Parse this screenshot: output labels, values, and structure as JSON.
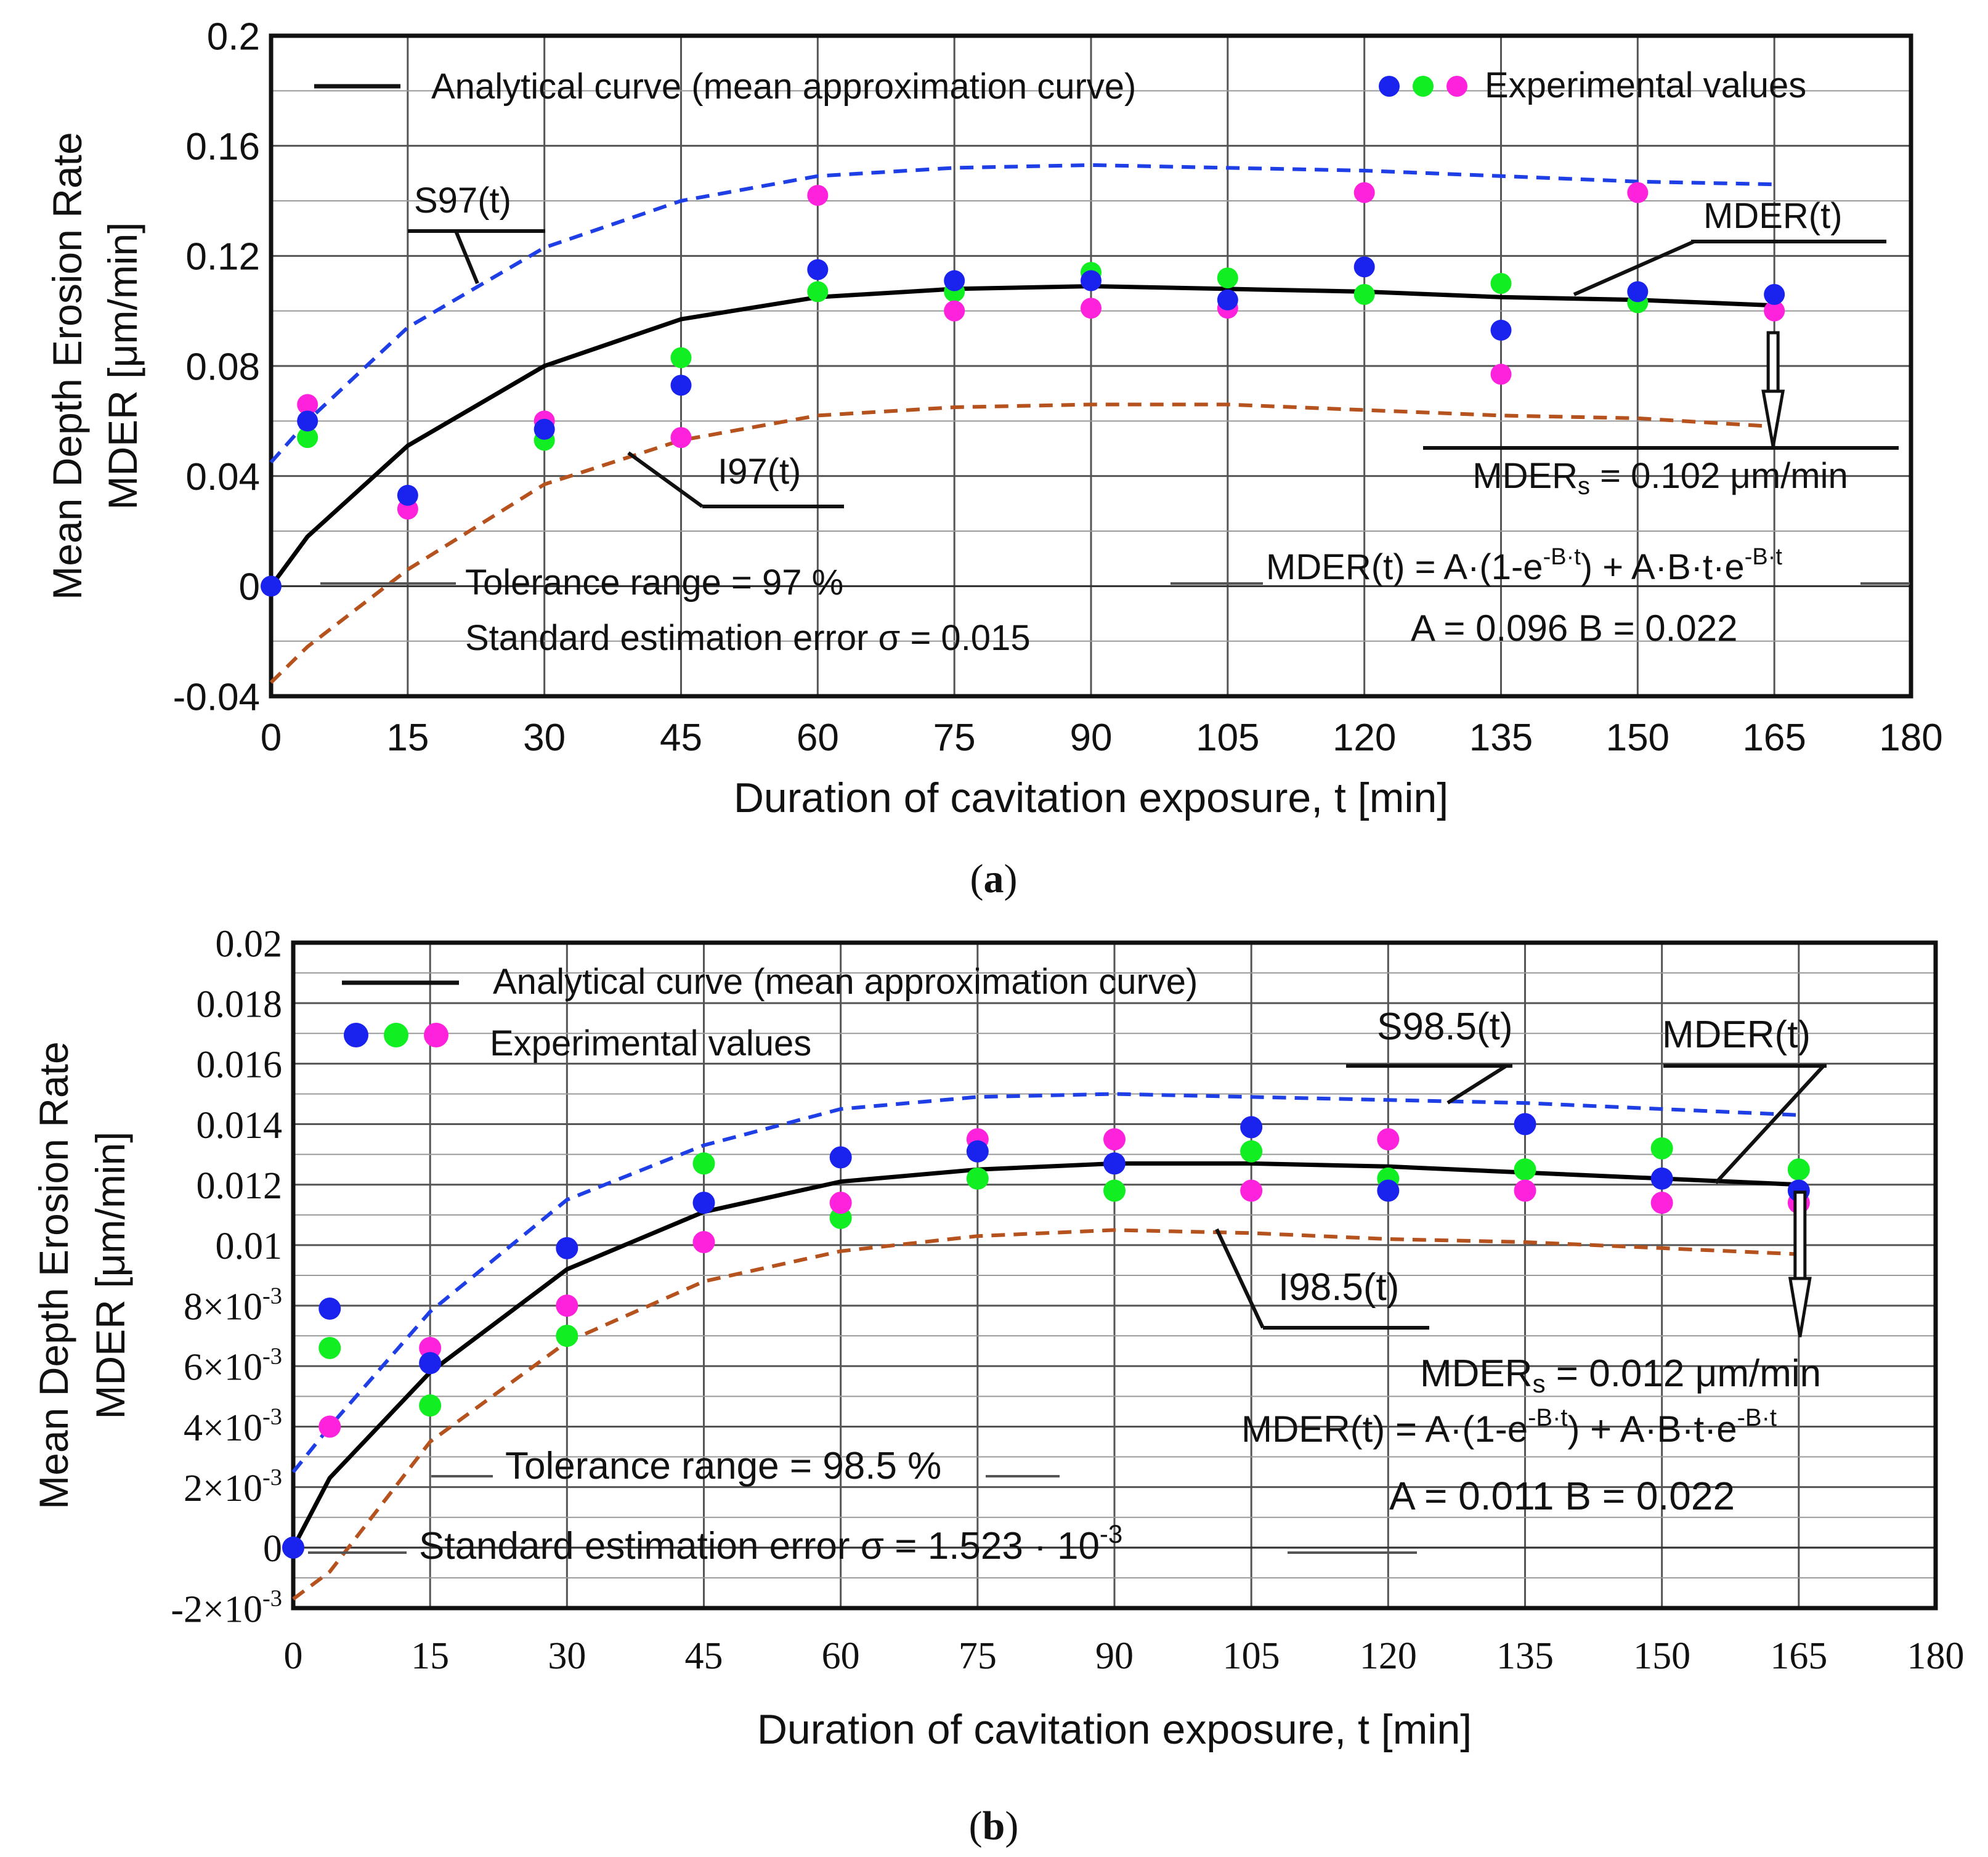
{
  "colors": {
    "upper": "#1f3fe6",
    "lower": "#b5521e",
    "mean": "#000000",
    "exp_blue": "#1a22ee",
    "exp_green": "#11ee22",
    "exp_magenta": "#ff22dd",
    "grid": "#555555"
  },
  "chart_data": [
    {
      "type": "scatter",
      "panel_label": "(a)",
      "panel_letter": "a",
      "ylabel_line1": "Mean Depth Erosion Rate",
      "ylabel_line2": "MDER [μm/min]",
      "xlabel": "Duration of cavitation exposure, t [min]",
      "xlim": [
        0,
        180
      ],
      "ylim": [
        -0.04,
        0.2
      ],
      "xticks": [
        0,
        15,
        30,
        45,
        60,
        75,
        90,
        105,
        120,
        135,
        150,
        165,
        180
      ],
      "yticks": [
        -0.04,
        0,
        0.04,
        0.08,
        0.12,
        0.16,
        0.2
      ],
      "ytick_labels": [
        "-0.04",
        "0",
        "0.04",
        "0.08",
        "0.12",
        "0.16",
        "0.2"
      ],
      "grid": true,
      "legend": {
        "analytical": "Analytical curve (mean approximation curve)",
        "experimental": "Experimental values",
        "placement": "top"
      },
      "curves": {
        "mean": {
          "name": "MDER(t)",
          "x": [
            0,
            4,
            15,
            30,
            45,
            60,
            75,
            90,
            105,
            120,
            135,
            150,
            165
          ],
          "y": [
            0,
            0.018,
            0.051,
            0.08,
            0.097,
            0.105,
            0.108,
            0.109,
            0.108,
            0.107,
            0.105,
            0.104,
            0.102
          ]
        },
        "upper": {
          "name": "S97(t)",
          "x": [
            0,
            4,
            15,
            30,
            45,
            60,
            75,
            90,
            105,
            120,
            135,
            150,
            165
          ],
          "y": [
            0.045,
            0.06,
            0.094,
            0.123,
            0.14,
            0.149,
            0.152,
            0.153,
            0.152,
            0.151,
            0.149,
            0.147,
            0.146
          ]
        },
        "lower": {
          "name": "I97(t)",
          "x": [
            0,
            4,
            15,
            30,
            45,
            60,
            75,
            90,
            105,
            120,
            135,
            150,
            165
          ],
          "y": [
            -0.035,
            -0.022,
            0.006,
            0.037,
            0.053,
            0.062,
            0.065,
            0.066,
            0.066,
            0.064,
            0.062,
            0.061,
            0.058
          ]
        }
      },
      "series": [
        {
          "name": "blue",
          "x": [
            0,
            4,
            15,
            30,
            45,
            60,
            75,
            90,
            105,
            120,
            135,
            150,
            165
          ],
          "values": [
            0,
            0.06,
            0.033,
            0.057,
            0.073,
            0.115,
            0.111,
            0.111,
            0.104,
            0.116,
            0.093,
            0.107,
            0.106
          ]
        },
        {
          "name": "green",
          "x": [
            4,
            30,
            45,
            60,
            75,
            90,
            105,
            120,
            135,
            150
          ],
          "values": [
            0.054,
            0.053,
            0.083,
            0.107,
            0.107,
            0.114,
            0.112,
            0.106,
            0.11,
            0.103
          ]
        },
        {
          "name": "magenta",
          "x": [
            4,
            15,
            30,
            45,
            60,
            75,
            90,
            105,
            120,
            135,
            150,
            165
          ],
          "values": [
            0.066,
            0.028,
            0.06,
            0.054,
            0.142,
            0.1,
            0.101,
            0.101,
            0.143,
            0.077,
            0.143,
            0.1
          ]
        }
      ],
      "annotations": {
        "upper_label": "S97(t)",
        "lower_label": "I97(t)",
        "mean_label": "MDER(t)",
        "steady_prefix": "MDER",
        "steady_sub": "s",
        "steady_value": " = 0.102 μm/min",
        "formula_main": "MDER(t) = A·(1-e",
        "formula_exp1": "-B·t",
        "formula_mid": ") + A·B·t·e",
        "formula_exp2": "-B·t",
        "params": "A = 0.096   B = 0.022",
        "tolerance": "Tolerance range = 97 %",
        "error_text": "Standard estimation error σ = 0.015",
        "steady_x": 165
      }
    },
    {
      "type": "scatter",
      "panel_label": "(b)",
      "panel_letter": "b",
      "ylabel_line1": "Mean Depth Erosion Rate",
      "ylabel_line2": "MDER [μm/min]",
      "xlabel": "Duration of cavitation exposure, t [min]",
      "xlim": [
        0,
        180
      ],
      "ylim": [
        -0.002,
        0.02
      ],
      "xticks": [
        0,
        15,
        30,
        45,
        60,
        75,
        90,
        105,
        120,
        135,
        150,
        165,
        180
      ],
      "yticks": [
        -0.002,
        0,
        0.002,
        0.004,
        0.006,
        0.008,
        0.01,
        0.012,
        0.014,
        0.016,
        0.018,
        0.02
      ],
      "ytick_labels": [
        "-2×10-3",
        "0",
        "2×10-3",
        "4×10-3",
        "6×10-3",
        "8×10-3",
        "0.01",
        "0.012",
        "0.014",
        "0.016",
        "0.018",
        "0.02"
      ],
      "grid": true,
      "legend": {
        "analytical": "Analytical curve (mean approximation curve)",
        "experimental": "Experimental values",
        "placement": "top-left"
      },
      "curves": {
        "mean": {
          "name": "MDER(t)",
          "x": [
            0,
            4,
            15,
            30,
            45,
            60,
            75,
            90,
            105,
            120,
            135,
            150,
            165
          ],
          "y": [
            0,
            0.0023,
            0.0058,
            0.0092,
            0.0111,
            0.0121,
            0.0125,
            0.0127,
            0.0127,
            0.0126,
            0.0124,
            0.0122,
            0.012
          ]
        },
        "upper": {
          "name": "S98.5(t)",
          "x": [
            0,
            4,
            15,
            30,
            45,
            60,
            75,
            90,
            105,
            120,
            135,
            150,
            165
          ],
          "y": [
            0.0025,
            0.004,
            0.0078,
            0.0115,
            0.0133,
            0.0145,
            0.0149,
            0.015,
            0.0149,
            0.0148,
            0.0147,
            0.0145,
            0.0143
          ]
        },
        "lower": {
          "name": "I98.5(t)",
          "x": [
            0,
            4,
            15,
            30,
            45,
            60,
            75,
            90,
            105,
            120,
            135,
            150,
            165
          ],
          "y": [
            -0.0017,
            -0.0008,
            0.0035,
            0.0068,
            0.0088,
            0.0098,
            0.0103,
            0.0105,
            0.0104,
            0.0102,
            0.0101,
            0.0099,
            0.0097
          ]
        }
      },
      "series": [
        {
          "name": "blue",
          "x": [
            0,
            4,
            15,
            30,
            45,
            60,
            75,
            90,
            105,
            120,
            135,
            150,
            165
          ],
          "values": [
            0,
            0.0079,
            0.0061,
            0.0099,
            0.0114,
            0.0129,
            0.0131,
            0.0127,
            0.0139,
            0.0118,
            0.014,
            0.0122,
            0.0118
          ]
        },
        {
          "name": "green",
          "x": [
            4,
            15,
            30,
            45,
            60,
            75,
            90,
            105,
            120,
            135,
            150,
            165
          ],
          "values": [
            0.0066,
            0.0047,
            0.007,
            0.0127,
            0.0109,
            0.0122,
            0.0118,
            0.0131,
            0.0122,
            0.0125,
            0.0132,
            0.0125
          ]
        },
        {
          "name": "magenta",
          "x": [
            4,
            15,
            30,
            45,
            60,
            75,
            90,
            105,
            120,
            135,
            150,
            165
          ],
          "values": [
            0.004,
            0.0066,
            0.008,
            0.0101,
            0.0114,
            0.0135,
            0.0135,
            0.0118,
            0.0135,
            0.0118,
            0.0114,
            0.0114
          ]
        }
      ],
      "annotations": {
        "upper_label": "S98.5(t)",
        "lower_label": "I98.5(t)",
        "mean_label": "MDER(t)",
        "steady_prefix": "MDER",
        "steady_sub": "s",
        "steady_value": " = 0.012 μm/min",
        "formula_main": "MDER(t) = A·(1-e",
        "formula_exp1": "-B·t",
        "formula_mid": ") + A·B·t·e",
        "formula_exp2": "-B·t",
        "params": "A = 0.011   B = 0.022",
        "tolerance": "Tolerance range = 98.5 %",
        "error_text": "Standard estimation error σ = 1.523 · 10",
        "error_exp": "-3",
        "steady_x": 165
      }
    }
  ]
}
